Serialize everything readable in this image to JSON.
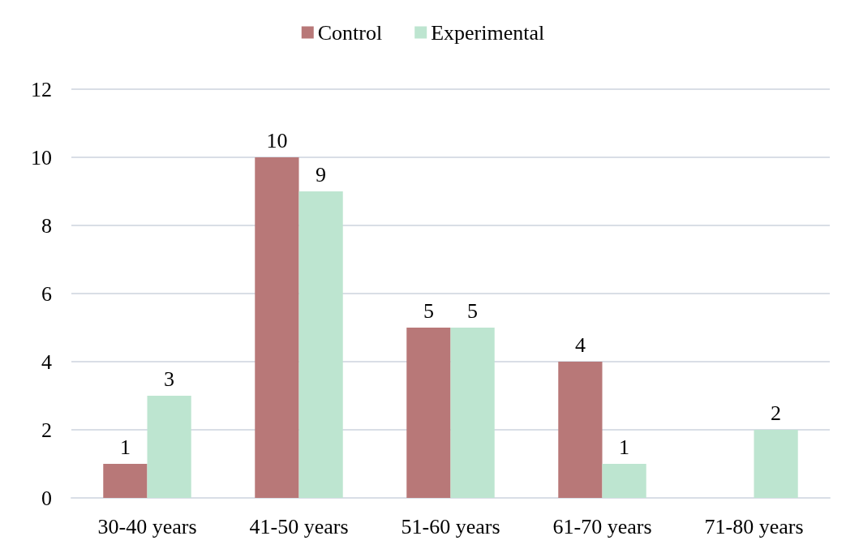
{
  "chart_data": {
    "type": "bar",
    "categories": [
      "30-40 years",
      "41-50 years",
      "51-60 years",
      "61-70 years",
      "71-80 years"
    ],
    "series": [
      {
        "name": "Control",
        "color": "#b87878",
        "values": [
          1,
          10,
          5,
          4,
          null
        ]
      },
      {
        "name": "Experimental",
        "color": "#bde5d0",
        "values": [
          3,
          9,
          5,
          1,
          2
        ]
      }
    ],
    "ylim": [
      0,
      12
    ],
    "yticks": [
      0,
      2,
      4,
      6,
      8,
      10,
      12
    ],
    "grid": "y",
    "legend": "top",
    "data_labels": true
  }
}
